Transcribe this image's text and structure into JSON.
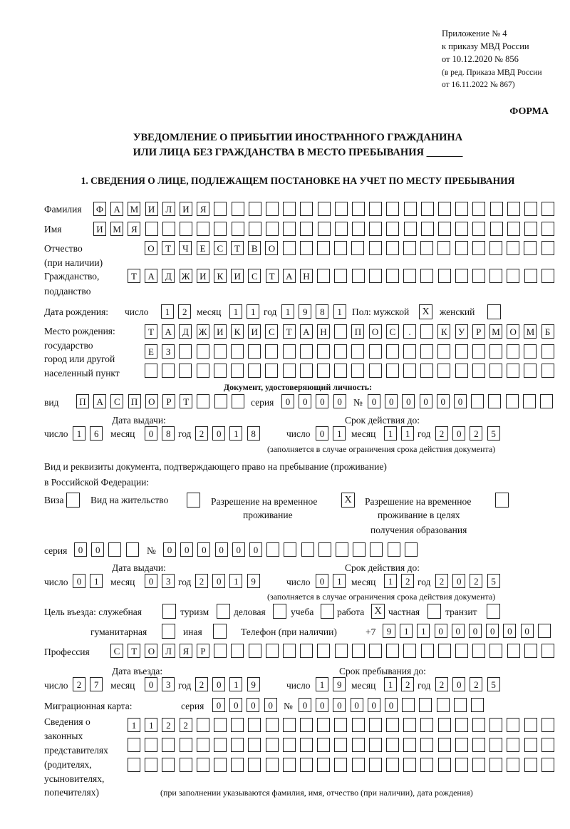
{
  "header": {
    "appendix_line1": "Приложение № 4",
    "appendix_line2": "к приказу МВД России",
    "appendix_line3": "от 10.12.2020 № 856",
    "revision_line1": "(в ред. Приказа МВД России",
    "revision_line2": "от 16.11.2022 № 867)",
    "form_label": "ФОРМА",
    "title_line1": "УВЕДОМЛЕНИЕ О ПРИБЫТИИ ИНОСТРАННОГО ГРАЖДАНИНА",
    "title_line2": "ИЛИ ЛИЦА БЕЗ ГРАЖДАНСТВА В МЕСТО ПРЕБЫВАНИЯ _______",
    "section1": "1. СВЕДЕНИЯ О ЛИЦЕ, ПОДЛЕЖАЩЕМ ПОСТАНОВКЕ НА УЧЕТ ПО МЕСТУ ПРЕБЫВАНИЯ"
  },
  "labels": {
    "surname": "Фамилия",
    "name": "Имя",
    "patronymic": "Отчество",
    "patronymic_note": "(при наличии)",
    "citizenship": "Гражданство,",
    "citizenship2": "подданство",
    "birth_date": "Дата рождения:",
    "day": "число",
    "month": "месяц",
    "year": "год",
    "sex": "Пол: мужской",
    "female": "женский",
    "birthplace1": "Место рождения:",
    "birthplace2": "государство",
    "birthplace3": "город или другой",
    "birthplace4": "населенный пункт",
    "id_doc": "Документ, удостоверяющий личность:",
    "kind": "вид",
    "series": "серия",
    "number": "№",
    "issue_date": "Дата выдачи:",
    "valid_until": "Срок действия до:",
    "valid_note": "(заполняется в случае ограничения срока действия документа)",
    "right_doc1": "Вид и реквизиты документа, подтверждающего право на пребывание (проживание)",
    "right_doc2": "в Российской Федерации:",
    "visa": "Виза",
    "residence_permit": "Вид на жительство",
    "temp_permit1": "Разрешение на временное",
    "temp_permit2": "проживание",
    "edu_permit1": "Разрешение на временное",
    "edu_permit2": "проживание в целях",
    "edu_permit3": "получения образования",
    "purpose": "Цель въезда: служебная",
    "tourism": "туризм",
    "business": "деловая",
    "study": "учеба",
    "work": "работа",
    "private": "частная",
    "transit": "транзит",
    "humanitarian": "гуманитарная",
    "other": "иная",
    "phone": "Телефон (при наличии)",
    "phone_prefix": "+7",
    "profession": "Профессия",
    "entry_date": "Дата въезда:",
    "stay_until": "Срок пребывания до:",
    "migration_card": "Миграционная карта:",
    "reps1": "Сведения о",
    "reps2": "законных",
    "reps3": "представителях",
    "reps4": "(родителях,",
    "reps5": "усыновителях,",
    "reps6": "попечителях)",
    "reps_note": "(при заполнении указываются фамилия, имя, отчество (при наличии), дата рождения)"
  },
  "values": {
    "surname": "ФАМИЛИЯ",
    "name": "ИМЯ",
    "patronymic": "ОТЧЕСТВО",
    "citizenship": "ТАДЖИКИСТАН",
    "birth_day": "12",
    "birth_month": "11",
    "birth_year": "1981",
    "sex_male": "X",
    "sex_female": "",
    "birthplace_row1": "ТАДЖИКИСТАН ПОС. КУРМОМБ",
    "birthplace_row2": "ЕЗ",
    "birthplace_row3": "",
    "id_kind": "ПАСПОРТ",
    "id_series": "0000",
    "id_number": "000000",
    "id_issue_day": "16",
    "id_issue_month": "08",
    "id_issue_year": "2018",
    "id_valid_day": "01",
    "id_valid_month": "11",
    "id_valid_year": "2025",
    "visa": "",
    "residence_permit": "",
    "temp_permit": "X",
    "edu_permit": "",
    "right_series": "00",
    "right_number": "000000",
    "right_issue_day": "01",
    "right_issue_month": "03",
    "right_issue_year": "2019",
    "right_valid_day": "01",
    "right_valid_month": "12",
    "right_valid_year": "2025",
    "purpose_official": "",
    "purpose_tourism": "",
    "purpose_business": "",
    "purpose_study": "",
    "purpose_work": "X",
    "purpose_private": "",
    "purpose_transit": "",
    "purpose_humanitarian": "",
    "purpose_other": "",
    "phone": "911000000",
    "profession": "СТОЛЯР",
    "entry_day": "27",
    "entry_month": "03",
    "entry_year": "2019",
    "stay_day": "19",
    "stay_month": "12",
    "stay_year": "2025",
    "mig_series": "0000",
    "mig_number": "000000",
    "reps_row1": "1122",
    "reps_row2": "",
    "reps_row3": ""
  }
}
